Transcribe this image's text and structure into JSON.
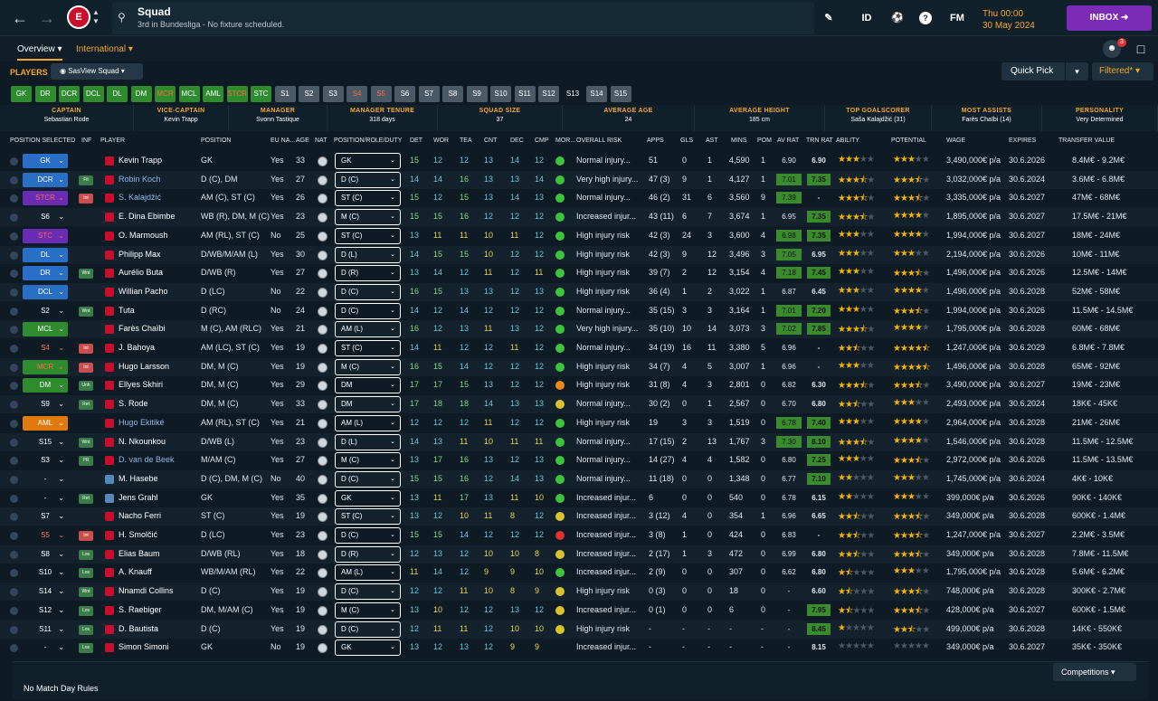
{
  "header": {
    "title": "Squad",
    "subtitle": "3rd in Bundesliga - No fixture scheduled.",
    "icons": [
      "edit-icon",
      "id-icon",
      "ball-icon",
      "help-icon",
      "fm-icon"
    ],
    "id_label": "ID",
    "fm_label": "FM",
    "date_line1": "Thu 00:00",
    "date_line2": "30 May 2024",
    "inbox_label": "INBOX",
    "notif_count": "3"
  },
  "tabs": {
    "overview": "Overview",
    "international": "International"
  },
  "players_bar": {
    "label": "PLAYERS",
    "view": "SasView Squad",
    "quick_pick": "Quick Pick",
    "filtered": "Filtered*"
  },
  "pos_filters": [
    "GK",
    "DR",
    "DCR",
    "DCL",
    "DL",
    "DM",
    "MCR",
    "MCL",
    "AML",
    "STCR",
    "STC",
    "S1",
    "S2",
    "S3",
    "S4",
    "S5",
    "S6",
    "S7",
    "S8",
    "S9",
    "S10",
    "S11",
    "S12",
    "S13",
    "S14",
    "S15"
  ],
  "summary": [
    {
      "label": "CAPTAIN",
      "value": "Sebastian Rode"
    },
    {
      "label": "VICE-CAPTAIN",
      "value": "Kevin Trapp"
    },
    {
      "label": "MANAGER",
      "value": "Svonn Tastique"
    },
    {
      "label": "MANAGER TENURE",
      "value": "318 days"
    },
    {
      "label": "SQUAD SIZE",
      "value": "37"
    },
    {
      "label": "AVERAGE AGE",
      "value": "24"
    },
    {
      "label": "AVERAGE HEIGHT",
      "value": "185 cm"
    },
    {
      "label": "TOP GOALSCORER",
      "value": "Saša Kalajdžić (31)"
    },
    {
      "label": "MOST ASSISTS",
      "value": "Farès Chaïbi (14)"
    },
    {
      "label": "PERSONALITY",
      "value": "Very Determined"
    }
  ],
  "columns": [
    "POSITION SELECTED",
    "INF",
    "PLAYER",
    "POSITION",
    "EU NA...",
    "AGE",
    "NAT",
    "POSITION/ROLE/DUTY",
    "DET",
    "WOR",
    "TEA",
    "CNT",
    "DEC",
    "CMP",
    "MOR...",
    "OVERALL RISK",
    "APPS",
    "GLS",
    "AST",
    "MINS",
    "POM",
    "AV RAT",
    "TRN RAT",
    "ABILITY",
    "POTENTIAL",
    "WAGE",
    "EXPIRES",
    "TRANSFER VALUE"
  ],
  "players": [
    {
      "sel": "GK",
      "inf": "",
      "name": "Kevin Trapp",
      "pos": "GK",
      "eu": "Yes",
      "age": "33",
      "role": "GK",
      "det": "15",
      "wor": "12",
      "tea": "12",
      "cnt": "13",
      "dec": "14",
      "cmp": "12",
      "risk": "Normal injury...",
      "apps": "51",
      "gls": "0",
      "ast": "1",
      "mins": "4,590",
      "pom": "1",
      "avr": "6.90",
      "trn": "6.90",
      "wage": "3,490,000€ p/a",
      "exp": "30.6.2026",
      "val": "8.4M€ - 9.2M€"
    },
    {
      "sel": "DCR",
      "inf": "Fit",
      "name": "Robin Koch",
      "pos": "D (C), DM",
      "eu": "Yes",
      "age": "27",
      "role": "D (C)",
      "det": "14",
      "wor": "14",
      "tea": "16",
      "cnt": "13",
      "dec": "13",
      "cmp": "14",
      "risk": "Very high injury...",
      "apps": "47 (3)",
      "gls": "9",
      "ast": "1",
      "mins": "4,127",
      "pom": "1",
      "avr": "7.01",
      "trn": "7.35",
      "wage": "3,032,000€ p/a",
      "exp": "30.6.2024",
      "val": "3.6M€ - 6.8M€"
    },
    {
      "sel": "STCR",
      "inf": "Int",
      "name": "S. Kalajdžić",
      "pos": "AM (C), ST (C)",
      "eu": "Yes",
      "age": "26",
      "role": "ST (C)",
      "det": "15",
      "wor": "12",
      "tea": "15",
      "cnt": "13",
      "dec": "14",
      "cmp": "13",
      "risk": "Normal injury...",
      "apps": "46 (2)",
      "gls": "31",
      "ast": "6",
      "mins": "3,560",
      "pom": "9",
      "avr": "7.39",
      "trn": "-",
      "wage": "3,335,000€ p/a",
      "exp": "30.6.2027",
      "val": "47M€ - 68M€"
    },
    {
      "sel": "S6",
      "inf": "",
      "name": "E. Dina Ebimbe",
      "pos": "WB (R), DM, M (C)",
      "eu": "Yes",
      "age": "23",
      "role": "M (C)",
      "det": "15",
      "wor": "15",
      "tea": "16",
      "cnt": "12",
      "dec": "12",
      "cmp": "12",
      "risk": "Increased injur...",
      "apps": "43 (11)",
      "gls": "6",
      "ast": "7",
      "mins": "3,674",
      "pom": "1",
      "avr": "6.95",
      "trn": "7.35",
      "wage": "1,895,000€ p/a",
      "exp": "30.6.2027",
      "val": "17.5M€ - 21M€"
    },
    {
      "sel": "STC",
      "inf": "",
      "name": "O. Marmoush",
      "pos": "AM (RL), ST (C)",
      "eu": "No",
      "age": "25",
      "role": "ST (C)",
      "det": "13",
      "wor": "11",
      "tea": "11",
      "cnt": "10",
      "dec": "11",
      "cmp": "12",
      "risk": "High injury risk",
      "apps": "42 (3)",
      "gls": "24",
      "ast": "3",
      "mins": "3,600",
      "pom": "4",
      "avr": "6.98",
      "trn": "7.35",
      "wage": "1,994,000€ p/a",
      "exp": "30.6.2027",
      "val": "18M€ - 24M€"
    },
    {
      "sel": "DL",
      "inf": "",
      "name": "Philipp Max",
      "pos": "D/WB/M/AM (L)",
      "eu": "Yes",
      "age": "30",
      "role": "D (L)",
      "det": "14",
      "wor": "15",
      "tea": "15",
      "cnt": "10",
      "dec": "12",
      "cmp": "12",
      "risk": "High injury risk",
      "apps": "42 (3)",
      "gls": "9",
      "ast": "12",
      "mins": "3,496",
      "pom": "3",
      "avr": "7.05",
      "trn": "6.95",
      "wage": "2,194,000€ p/a",
      "exp": "30.6.2026",
      "val": "10M€ - 11M€"
    },
    {
      "sel": "DR",
      "inf": "Wnt",
      "name": "Aurélio Buta",
      "pos": "D/WB (R)",
      "eu": "Yes",
      "age": "27",
      "role": "D (R)",
      "det": "13",
      "wor": "14",
      "tea": "12",
      "cnt": "11",
      "dec": "12",
      "cmp": "11",
      "risk": "High injury risk",
      "apps": "39 (7)",
      "gls": "2",
      "ast": "12",
      "mins": "3,154",
      "pom": "4",
      "avr": "7.18",
      "trn": "7.45",
      "wage": "1,496,000€ p/a",
      "exp": "30.6.2026",
      "val": "12.5M€ - 14M€"
    },
    {
      "sel": "DCL",
      "inf": "",
      "name": "Willian Pacho",
      "pos": "D (LC)",
      "eu": "No",
      "age": "22",
      "role": "D (C)",
      "det": "16",
      "wor": "15",
      "tea": "13",
      "cnt": "13",
      "dec": "12",
      "cmp": "13",
      "risk": "High injury risk",
      "apps": "36 (4)",
      "gls": "1",
      "ast": "2",
      "mins": "3,022",
      "pom": "1",
      "avr": "6.87",
      "trn": "6.45",
      "wage": "1,496,000€ p/a",
      "exp": "30.6.2028",
      "val": "52M€ - 58M€"
    },
    {
      "sel": "S2",
      "inf": "Wnt",
      "name": "Tuta",
      "pos": "D (RC)",
      "eu": "No",
      "age": "24",
      "role": "D (C)",
      "det": "14",
      "wor": "12",
      "tea": "14",
      "cnt": "12",
      "dec": "12",
      "cmp": "12",
      "risk": "Normal injury...",
      "apps": "35 (15)",
      "gls": "3",
      "ast": "3",
      "mins": "3,164",
      "pom": "1",
      "avr": "7.01",
      "trn": "7.20",
      "wage": "1,994,000€ p/a",
      "exp": "30.6.2026",
      "val": "11.5M€ - 14.5M€"
    },
    {
      "sel": "MCL",
      "inf": "",
      "name": "Farès Chaïbi",
      "pos": "M (C), AM (RLC)",
      "eu": "Yes",
      "age": "21",
      "role": "AM (L)",
      "det": "16",
      "wor": "12",
      "tea": "13",
      "cnt": "11",
      "dec": "13",
      "cmp": "12",
      "risk": "Very high injury...",
      "apps": "35 (10)",
      "gls": "10",
      "ast": "14",
      "mins": "3,073",
      "pom": "3",
      "avr": "7.02",
      "trn": "7.85",
      "wage": "1,795,000€ p/a",
      "exp": "30.6.2028",
      "val": "60M€ - 68M€"
    },
    {
      "sel": "S4",
      "inf": "Int",
      "name": "J. Bahoya",
      "pos": "AM (LC), ST (C)",
      "eu": "Yes",
      "age": "19",
      "role": "ST (C)",
      "det": "14",
      "wor": "11",
      "tea": "12",
      "cnt": "12",
      "dec": "11",
      "cmp": "12",
      "risk": "Normal injury...",
      "apps": "34 (19)",
      "gls": "16",
      "ast": "11",
      "mins": "3,380",
      "pom": "5",
      "avr": "6.96",
      "trn": "-",
      "wage": "1,247,000€ p/a",
      "exp": "30.6.2029",
      "val": "6.8M€ - 7.8M€"
    },
    {
      "sel": "MCR",
      "inf": "Int",
      "name": "Hugo Larsson",
      "pos": "DM, M (C)",
      "eu": "Yes",
      "age": "19",
      "role": "M (C)",
      "det": "16",
      "wor": "15",
      "tea": "14",
      "cnt": "12",
      "dec": "12",
      "cmp": "12",
      "risk": "High injury risk",
      "apps": "34 (7)",
      "gls": "4",
      "ast": "5",
      "mins": "3,007",
      "pom": "1",
      "avr": "6.96",
      "trn": "-",
      "wage": "1,496,000€ p/a",
      "exp": "30.6.2028",
      "val": "65M€ - 92M€"
    },
    {
      "sel": "DM",
      "inf": "Unh",
      "name": "Ellyes Skhiri",
      "pos": "DM, M (C)",
      "eu": "Yes",
      "age": "29",
      "role": "DM",
      "det": "17",
      "wor": "17",
      "tea": "15",
      "cnt": "13",
      "dec": "12",
      "cmp": "12",
      "risk": "High injury risk",
      "apps": "31 (8)",
      "gls": "4",
      "ast": "3",
      "mins": "2,801",
      "pom": "0",
      "avr": "6.82",
      "trn": "6.30",
      "wage": "3,490,000€ p/a",
      "exp": "30.6.2027",
      "val": "19M€ - 23M€"
    },
    {
      "sel": "S9",
      "inf": "Ret",
      "name": "S. Rode",
      "pos": "DM, M (C)",
      "eu": "Yes",
      "age": "33",
      "role": "DM",
      "det": "17",
      "wor": "18",
      "tea": "18",
      "cnt": "14",
      "dec": "13",
      "cmp": "13",
      "risk": "Normal injury...",
      "apps": "30 (2)",
      "gls": "0",
      "ast": "1",
      "mins": "2,567",
      "pom": "0",
      "avr": "6.70",
      "trn": "6.80",
      "wage": "2,493,000€ p/a",
      "exp": "30.6.2024",
      "val": "18K€ - 45K€"
    },
    {
      "sel": "AML",
      "inf": "",
      "name": "Hugo Ekitiké",
      "pos": "AM (RL), ST (C)",
      "eu": "Yes",
      "age": "21",
      "role": "AM (L)",
      "det": "12",
      "wor": "12",
      "tea": "12",
      "cnt": "11",
      "dec": "12",
      "cmp": "12",
      "risk": "High injury risk",
      "apps": "19",
      "gls": "3",
      "ast": "3",
      "mins": "1,519",
      "pom": "0",
      "avr": "6.78",
      "trn": "7.40",
      "wage": "2,964,000€ p/a",
      "exp": "30.6.2028",
      "val": "21M€ - 26M€"
    },
    {
      "sel": "S15",
      "inf": "Wnt",
      "name": "N. Nkounkou",
      "pos": "D/WB (L)",
      "eu": "Yes",
      "age": "23",
      "role": "D (L)",
      "det": "14",
      "wor": "13",
      "tea": "11",
      "cnt": "10",
      "dec": "11",
      "cmp": "11",
      "risk": "Normal injury...",
      "apps": "17 (15)",
      "gls": "2",
      "ast": "13",
      "mins": "1,767",
      "pom": "3",
      "avr": "7.30",
      "trn": "8.10",
      "wage": "1,546,000€ p/a",
      "exp": "30.6.2028",
      "val": "11.5M€ - 12.5M€"
    },
    {
      "sel": "S3",
      "inf": "PR",
      "name": "D. van de Beek",
      "pos": "M/AM (C)",
      "eu": "Yes",
      "age": "27",
      "role": "M (C)",
      "det": "13",
      "wor": "17",
      "tea": "16",
      "cnt": "13",
      "dec": "12",
      "cmp": "13",
      "risk": "Normal injury...",
      "apps": "14 (27)",
      "gls": "4",
      "ast": "4",
      "mins": "1,582",
      "pom": "0",
      "avr": "6.80",
      "trn": "7.25",
      "wage": "2,972,000€ p/a",
      "exp": "30.6.2026",
      "val": "11.5M€ - 13.5M€"
    },
    {
      "sel": "-",
      "inf": "",
      "name": "M. Hasebe",
      "pos": "D (C), DM, M (C)",
      "eu": "No",
      "age": "40",
      "role": "D (C)",
      "det": "15",
      "wor": "15",
      "tea": "16",
      "cnt": "12",
      "dec": "14",
      "cmp": "13",
      "risk": "Normal injury...",
      "apps": "11 (18)",
      "gls": "0",
      "ast": "0",
      "mins": "1,348",
      "pom": "0",
      "avr": "6.77",
      "trn": "7.10",
      "wage": "1,745,000€ p/a",
      "exp": "30.6.2024",
      "val": "4K€ - 10K€"
    },
    {
      "sel": "-",
      "inf": "Ret",
      "name": "Jens Grahl",
      "pos": "GK",
      "eu": "Yes",
      "age": "35",
      "role": "GK",
      "det": "13",
      "wor": "11",
      "tea": "17",
      "cnt": "13",
      "dec": "11",
      "cmp": "10",
      "risk": "Increased injur...",
      "apps": "6",
      "gls": "0",
      "ast": "0",
      "mins": "540",
      "pom": "0",
      "avr": "6.78",
      "trn": "6.15",
      "wage": "399,000€ p/a",
      "exp": "30.6.2026",
      "val": "90K€ - 140K€"
    },
    {
      "sel": "S7",
      "inf": "",
      "name": "Nacho Ferri",
      "pos": "ST (C)",
      "eu": "Yes",
      "age": "19",
      "role": "ST (C)",
      "det": "13",
      "wor": "12",
      "tea": "10",
      "cnt": "11",
      "dec": "8",
      "cmp": "12",
      "risk": "Increased injur...",
      "apps": "3 (12)",
      "gls": "4",
      "ast": "0",
      "mins": "354",
      "pom": "1",
      "avr": "6.96",
      "trn": "6.65",
      "wage": "349,000€ p/a",
      "exp": "30.6.2028",
      "val": "600K€ - 1.4M€"
    },
    {
      "sel": "S5",
      "inf": "Int",
      "name": "H. Smolčić",
      "pos": "D (LC)",
      "eu": "Yes",
      "age": "23",
      "role": "D (C)",
      "det": "15",
      "wor": "15",
      "tea": "14",
      "cnt": "12",
      "dec": "12",
      "cmp": "12",
      "risk": "Increased injur...",
      "apps": "3 (8)",
      "gls": "1",
      "ast": "0",
      "mins": "424",
      "pom": "0",
      "avr": "6.83",
      "trn": "-",
      "wage": "1,247,000€ p/a",
      "exp": "30.6.2027",
      "val": "2.2M€ - 3.5M€"
    },
    {
      "sel": "S8",
      "inf": "Los",
      "name": "Elias Baum",
      "pos": "D/WB (RL)",
      "eu": "Yes",
      "age": "18",
      "role": "D (R)",
      "det": "12",
      "wor": "13",
      "tea": "12",
      "cnt": "10",
      "dec": "10",
      "cmp": "8",
      "risk": "Increased injur...",
      "apps": "2 (17)",
      "gls": "1",
      "ast": "3",
      "mins": "472",
      "pom": "0",
      "avr": "6.99",
      "trn": "6.80",
      "wage": "349,000€ p/a",
      "exp": "30.6.2028",
      "val": "7.8M€ - 11.5M€"
    },
    {
      "sel": "S10",
      "inf": "Los",
      "name": "A. Knauff",
      "pos": "WB/M/AM (RL)",
      "eu": "Yes",
      "age": "22",
      "role": "AM (L)",
      "det": "11",
      "wor": "14",
      "tea": "12",
      "cnt": "9",
      "dec": "9",
      "cmp": "10",
      "risk": "Increased injur...",
      "apps": "2 (9)",
      "gls": "0",
      "ast": "0",
      "mins": "307",
      "pom": "0",
      "avr": "6.62",
      "trn": "6.80",
      "wage": "1,795,000€ p/a",
      "exp": "30.6.2028",
      "val": "5.6M€ - 6.2M€"
    },
    {
      "sel": "S14",
      "inf": "Wnt",
      "name": "Nnamdi Collins",
      "pos": "D (C)",
      "eu": "Yes",
      "age": "19",
      "role": "D (C)",
      "det": "12",
      "wor": "12",
      "tea": "11",
      "cnt": "10",
      "dec": "8",
      "cmp": "9",
      "risk": "High injury risk",
      "apps": "0 (3)",
      "gls": "0",
      "ast": "0",
      "mins": "18",
      "pom": "0",
      "avr": "-",
      "trn": "6.60",
      "wage": "748,000€ p/a",
      "exp": "30.6.2028",
      "val": "300K€ - 2.7M€"
    },
    {
      "sel": "S12",
      "inf": "Los",
      "name": "S. Raebiger",
      "pos": "DM, M/AM (C)",
      "eu": "Yes",
      "age": "19",
      "role": "M (C)",
      "det": "13",
      "wor": "10",
      "tea": "12",
      "cnt": "12",
      "dec": "13",
      "cmp": "12",
      "risk": "Increased injur...",
      "apps": "0 (1)",
      "gls": "0",
      "ast": "0",
      "mins": "6",
      "pom": "0",
      "avr": "-",
      "trn": "7.95",
      "wage": "428,000€ p/a",
      "exp": "30.6.2027",
      "val": "600K€ - 1.5M€"
    },
    {
      "sel": "S11",
      "inf": "Los",
      "name": "D. Bautista",
      "pos": "D (C)",
      "eu": "Yes",
      "age": "19",
      "role": "D (C)",
      "det": "12",
      "wor": "11",
      "tea": "11",
      "cnt": "12",
      "dec": "10",
      "cmp": "10",
      "risk": "High injury risk",
      "apps": "-",
      "gls": "-",
      "ast": "-",
      "mins": "-",
      "pom": "-",
      "avr": "-",
      "trn": "8.45",
      "wage": "499,000€ p/a",
      "exp": "30.6.2028",
      "val": "14K€ - 550K€"
    },
    {
      "sel": "-",
      "inf": "Los",
      "name": "Simon Simoni",
      "pos": "GK",
      "eu": "No",
      "age": "19",
      "role": "GK",
      "det": "13",
      "wor": "12",
      "tea": "13",
      "cnt": "12",
      "dec": "9",
      "cmp": "9",
      "risk": "Increased injur...",
      "apps": "-",
      "gls": "-",
      "ast": "-",
      "mins": "-",
      "pom": "-",
      "avr": "-",
      "trn": "8.15",
      "wage": "349,000€ p/a",
      "exp": "30.6.2027",
      "val": "35K€ - 350K€"
    }
  ],
  "footer": {
    "label": "No Match Day Rules",
    "competitions": "Competitions"
  }
}
